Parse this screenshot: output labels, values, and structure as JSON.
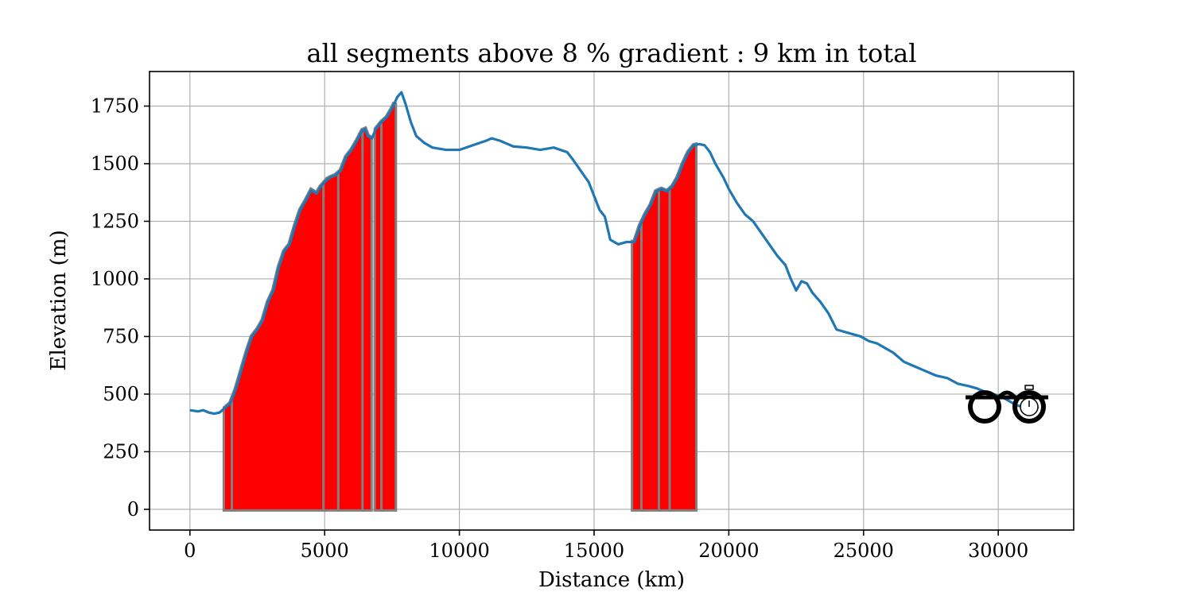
{
  "chart_data": {
    "type": "area",
    "title": "all segments above 8 % gradient : 9 km in total",
    "xlabel": "Distance (km)",
    "ylabel": "Elevation (m)",
    "xlim": [
      -1500,
      32800
    ],
    "ylim": [
      -90,
      1900
    ],
    "xticks": [
      0,
      5000,
      10000,
      15000,
      20000,
      25000,
      30000
    ],
    "yticks": [
      0,
      250,
      500,
      750,
      1000,
      1250,
      1500,
      1750
    ],
    "grid": true,
    "colors": {
      "line": "#1f77b4",
      "steep": "#ff0000",
      "segment_edge": "#808080"
    },
    "series": [
      {
        "x": [
          0,
          300,
          500,
          700,
          900,
          1100,
          1300,
          1500,
          1700,
          1900,
          2100,
          2300,
          2500,
          2700,
          2900,
          3100,
          3300,
          3500,
          3700,
          3900,
          4100,
          4300,
          4500,
          4700,
          4850,
          5000,
          5200,
          5400,
          5600,
          5800,
          6000,
          6200,
          6400,
          6500,
          6600,
          6750,
          6900,
          7100,
          7300,
          7500,
          7700,
          7850,
          8000,
          8200,
          8400,
          8700,
          9000,
          9500,
          10000,
          10500,
          11000,
          11200,
          11500,
          12000,
          12500,
          13000,
          13500,
          14000,
          14200,
          14500,
          14800,
          15000,
          15200,
          15400,
          15600,
          15900,
          16200,
          16500,
          16700,
          16900,
          17100,
          17300,
          17500,
          17700,
          17900,
          18100,
          18300,
          18500,
          18700,
          18900,
          19100,
          19300,
          19500,
          19800,
          20000,
          20300,
          20600,
          20900,
          21200,
          21500,
          21800,
          22100,
          22300,
          22500,
          22700,
          22900,
          23100,
          23400,
          23700,
          24000,
          24300,
          24600,
          24900,
          25200,
          25500,
          25800,
          26100,
          26500,
          26900,
          27300,
          27700,
          28100,
          28500,
          28900,
          29200,
          29500,
          29800,
          30100,
          30400,
          30700,
          31000,
          31300,
          31500
        ],
        "y": [
          430,
          425,
          430,
          420,
          415,
          420,
          440,
          460,
          520,
          600,
          680,
          750,
          780,
          820,
          900,
          950,
          1050,
          1120,
          1150,
          1230,
          1300,
          1340,
          1385,
          1370,
          1400,
          1420,
          1440,
          1450,
          1470,
          1530,
          1560,
          1600,
          1645,
          1650,
          1620,
          1610,
          1650,
          1680,
          1700,
          1740,
          1790,
          1810,
          1760,
          1680,
          1620,
          1590,
          1570,
          1560,
          1560,
          1580,
          1600,
          1610,
          1600,
          1575,
          1570,
          1560,
          1570,
          1550,
          1520,
          1470,
          1420,
          1360,
          1300,
          1270,
          1170,
          1150,
          1160,
          1160,
          1230,
          1280,
          1320,
          1380,
          1390,
          1380,
          1400,
          1440,
          1500,
          1550,
          1580,
          1585,
          1580,
          1550,
          1500,
          1440,
          1390,
          1330,
          1280,
          1250,
          1200,
          1150,
          1100,
          1060,
          1000,
          950,
          990,
          980,
          940,
          900,
          850,
          780,
          770,
          760,
          750,
          730,
          720,
          700,
          680,
          640,
          620,
          600,
          580,
          570,
          545,
          535,
          525,
          510,
          500,
          490,
          470,
          450,
          445,
          450,
          440
        ]
      }
    ],
    "steep_segments": [
      [
        1300,
        1600
      ],
      [
        1600,
        5000
      ],
      [
        5000,
        5550
      ],
      [
        5550,
        6450
      ],
      [
        6450,
        6700
      ],
      [
        6900,
        7150
      ],
      [
        7150,
        7600
      ],
      [
        16450,
        16800
      ],
      [
        16800,
        17400
      ],
      [
        17450,
        17850
      ],
      [
        17850,
        18750
      ]
    ],
    "annotation_icon": "bicycle-icon"
  }
}
